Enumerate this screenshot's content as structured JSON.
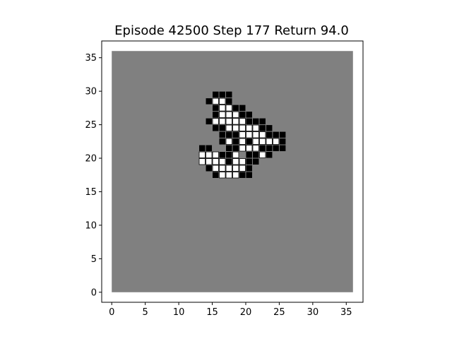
{
  "title": "Episode 42500 Step 177 Return 94.0",
  "grid": {
    "size": 36,
    "background_color": "#808080",
    "alive_color": "#ffffff",
    "dead_color": "#000000",
    "row_start": 6,
    "rows": [
      ".......................................................................................................................................................................................................................................................................................................",
      "....................B......................................................................................................................................................................",
      "................................................................................................................................................................................................................................."
    ]
  },
  "cells": {
    "cell_rows_from_top": 6,
    "pattern": [
      "..BBB........",
      ".BWWB........",
      "..BWWBB......",
      "..BWWWBB.....",
      ".BWWWWWBBB...",
      "..BBWWWWWBB..",
      "...BBBWWWWBBB.",
      "...BWBWBWWWWB",
      "BB..BBWWWBBBB",
      "WWWBBW.BBWB..",
      "WWWWBWWBB....",
      ".BWWWWWB.....",
      "..BWWWBB....."
    ]
  },
  "axes": {
    "x_ticks": [
      "0",
      "5",
      "10",
      "15",
      "20",
      "25",
      "30",
      "35"
    ],
    "y_ticks": [
      "0",
      "5",
      "10",
      "15",
      "20",
      "25",
      "30",
      "35"
    ],
    "x_range": [
      -1.5,
      37.5
    ],
    "y_range": [
      -1.5,
      37.5
    ]
  },
  "colors": {
    "background": "#808080",
    "alive": "#ffffff",
    "dead": "#000000"
  }
}
